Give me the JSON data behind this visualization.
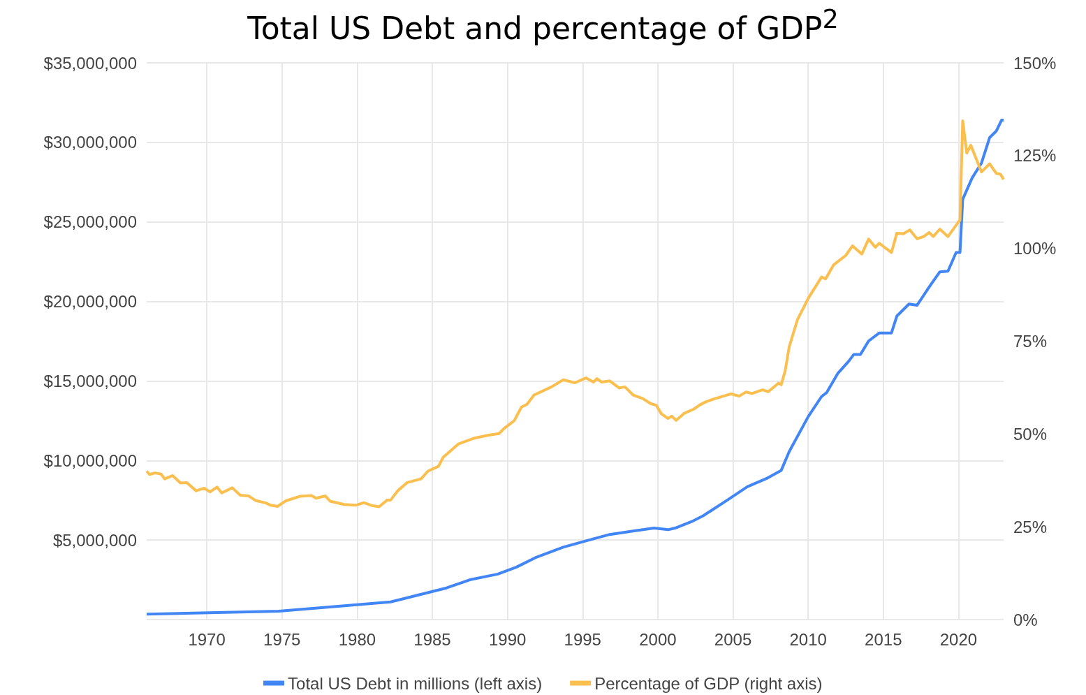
{
  "chart_data": {
    "type": "line",
    "title": "Total US Debt and percentage of GDP$^{2}$",
    "xlim": [
      1966,
      2023
    ],
    "xticks": [
      1970,
      1975,
      1980,
      1985,
      1990,
      1995,
      2000,
      2005,
      2010,
      2015,
      2020
    ],
    "ylim": [
      0,
      35000000
    ],
    "yticks": [
      {
        "value": 0,
        "label": null
      },
      {
        "value": 5000000,
        "label": "$5,000,000"
      },
      {
        "value": 10000000,
        "label": "$10,000,000"
      },
      {
        "value": 15000000,
        "label": "$15,000,000"
      },
      {
        "value": 20000000,
        "label": "$20,000,000"
      },
      {
        "value": 25000000,
        "label": "$25,000,000"
      },
      {
        "value": 30000000,
        "label": "$30,000,000"
      },
      {
        "value": 35000000,
        "label": "$35,000,000"
      }
    ],
    "y2lim": [
      0,
      150
    ],
    "y2ticks": [
      {
        "value": 0,
        "label": "0%"
      },
      {
        "value": 25,
        "label": "25%"
      },
      {
        "value": 50,
        "label": "50%"
      },
      {
        "value": 75,
        "label": "75%"
      },
      {
        "value": 100,
        "label": "100%"
      },
      {
        "value": 125,
        "label": "125%"
      },
      {
        "value": 150,
        "label": "150%"
      }
    ],
    "grid": true,
    "legend": "bottom",
    "series": [
      {
        "name": "Total US Debt in millions (left axis)",
        "color": "#4285f4",
        "x": [
          1966.0,
          1970.14,
          1974.79,
          1979.44,
          1982.23,
          1984.09,
          1985.95,
          1987.5,
          1989.36,
          1990.6,
          1991.85,
          1993.71,
          1995.26,
          1996.8,
          1998.36,
          1999.75,
          2000.68,
          2001.15,
          2002.23,
          2003.01,
          2004.56,
          2005.95,
          2007.3,
          2008.21,
          2008.74,
          2010.0,
          2010.89,
          2011.24,
          2011.96,
          2012.68,
          2013.04,
          2013.48,
          2014.02,
          2014.73,
          2015.54,
          2015.9,
          2016.71,
          2017.24,
          2018.13,
          2018.76,
          2019.3,
          2019.84,
          2020.1,
          2020.28,
          2020.91,
          2021.53,
          2022.07,
          2022.52,
          2022.87,
          2023.0
        ],
        "values": [
          340000,
          425000,
          526000,
          890000,
          1110000,
          1550000,
          1990000,
          2500000,
          2860000,
          3300000,
          3890000,
          4550000,
          4960000,
          5350000,
          5570000,
          5750000,
          5650000,
          5750000,
          6150000,
          6520000,
          7470000,
          8350000,
          8900000,
          9380000,
          10560000,
          12750000,
          14020000,
          14280000,
          15460000,
          16220000,
          16670000,
          16670000,
          17510000,
          18020000,
          18020000,
          19080000,
          19840000,
          19760000,
          21020000,
          21860000,
          21900000,
          23080000,
          23080000,
          26420000,
          27770000,
          28700000,
          30300000,
          30720000,
          31400000,
          31400000
        ]
      },
      {
        "name": "Percentage of GDP (right axis)",
        "color": "#fbbf50",
        "axis": "y2",
        "x": [
          1966.0,
          1966.19,
          1966.56,
          1966.96,
          1967.2,
          1967.73,
          1968.25,
          1968.67,
          1969.29,
          1969.83,
          1970.22,
          1970.68,
          1970.99,
          1971.69,
          1972.23,
          1972.78,
          1973.24,
          1973.94,
          1974.25,
          1974.71,
          1975.26,
          1976.19,
          1976.96,
          1977.27,
          1977.89,
          1978.2,
          1979.13,
          1979.91,
          1980.45,
          1980.99,
          1981.46,
          1982.0,
          1982.23,
          1982.7,
          1983.32,
          1984.25,
          1984.71,
          1985.41,
          1985.72,
          1986.73,
          1987.81,
          1988.74,
          1989.44,
          1989.75,
          1990.45,
          1990.92,
          1991.3,
          1991.77,
          1992.93,
          1993.71,
          1994.48,
          1995.22,
          1995.72,
          1995.95,
          1996.26,
          1996.8,
          1997.43,
          1997.81,
          1998.36,
          1998.98,
          1999.52,
          1999.91,
          2000.22,
          2000.68,
          2000.92,
          2001.22,
          2001.77,
          2002.39,
          2002.78,
          2003.16,
          2003.78,
          2004.87,
          2005.41,
          2005.87,
          2006.26,
          2006.96,
          2007.35,
          2008.03,
          2008.21,
          2008.47,
          2008.74,
          2009.28,
          2010.0,
          2010.89,
          2011.16,
          2011.7,
          2012.5,
          2012.95,
          2013.57,
          2014.02,
          2014.47,
          2014.73,
          2015.54,
          2015.9,
          2016.35,
          2016.76,
          2017.24,
          2017.69,
          2018.05,
          2018.32,
          2018.76,
          2019.3,
          2020.01,
          2020.1,
          2020.28,
          2020.55,
          2020.82,
          2021.53,
          2022.07,
          2022.52,
          2022.79,
          2023.0
        ],
        "values": [
          40.0,
          39.1,
          39.5,
          39.2,
          37.9,
          38.8,
          36.8,
          36.9,
          34.7,
          35.4,
          34.4,
          35.7,
          34.1,
          35.5,
          33.5,
          33.3,
          32.1,
          31.4,
          30.8,
          30.5,
          32.0,
          33.2,
          33.4,
          32.7,
          33.3,
          31.9,
          31.0,
          30.8,
          31.5,
          30.7,
          30.4,
          32.2,
          32.2,
          34.7,
          36.9,
          37.9,
          40.0,
          41.3,
          43.7,
          47.3,
          48.9,
          49.7,
          50.1,
          51.4,
          53.6,
          57.2,
          58.0,
          60.5,
          62.7,
          64.6,
          63.8,
          65.1,
          64.0,
          64.9,
          64.0,
          64.3,
          62.4,
          62.7,
          60.5,
          59.6,
          58.2,
          57.7,
          55.5,
          54.2,
          54.8,
          53.7,
          55.6,
          56.7,
          57.8,
          58.6,
          59.5,
          60.8,
          60.2,
          61.3,
          60.9,
          61.9,
          61.4,
          63.7,
          63.3,
          67.0,
          73.5,
          80.7,
          86.5,
          92.3,
          91.8,
          95.6,
          98.1,
          100.7,
          98.5,
          102.5,
          100.3,
          101.4,
          98.9,
          104.1,
          104.0,
          105.0,
          102.6,
          103.2,
          104.3,
          103.2,
          105.2,
          103.2,
          107.2,
          107.6,
          134.4,
          125.7,
          127.8,
          120.6,
          122.8,
          120.2,
          120.0,
          118.6
        ]
      }
    ]
  }
}
